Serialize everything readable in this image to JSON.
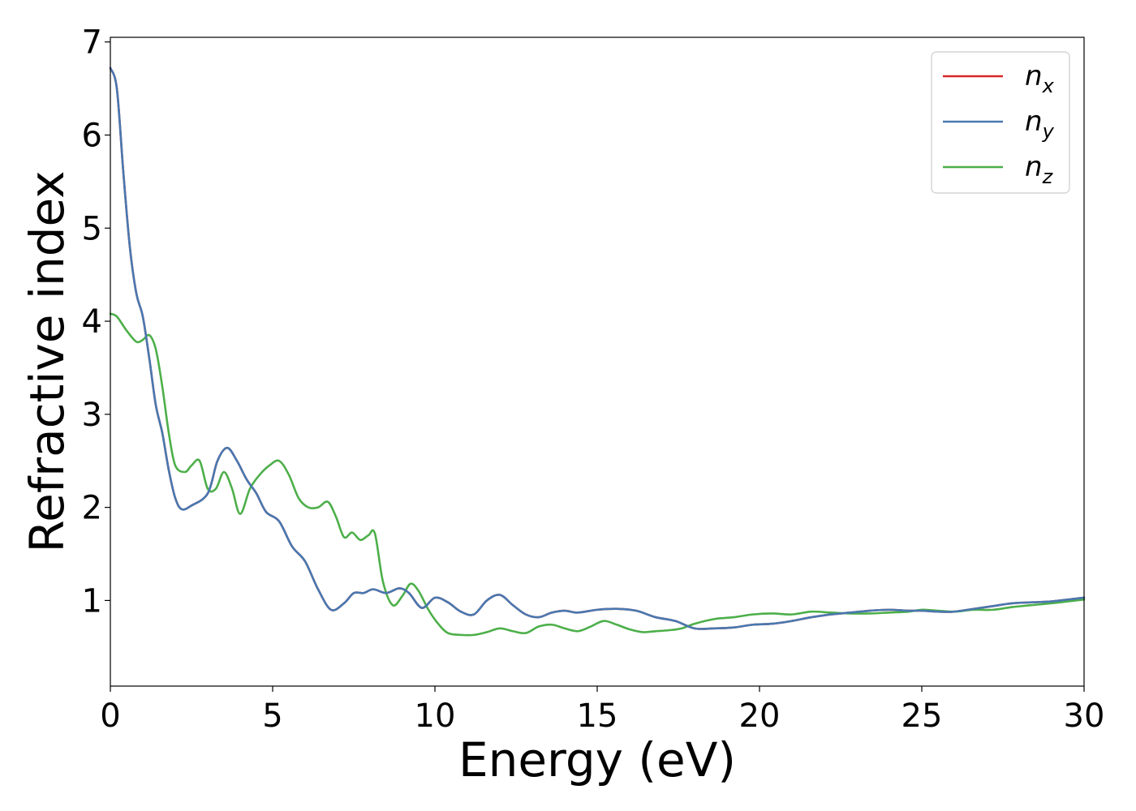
{
  "chart_data": {
    "type": "line",
    "xlabel": "Energy (eV)",
    "ylabel": "Refractive index",
    "xlim": [
      0,
      30
    ],
    "ylim": [
      0.08,
      7.05
    ],
    "xticks": [
      0,
      5,
      10,
      15,
      20,
      25,
      30
    ],
    "yticks": [
      1,
      2,
      3,
      4,
      5,
      6,
      7
    ],
    "grid": false,
    "legend_position": "top-right",
    "series": [
      {
        "name": "n",
        "subscript": "x",
        "color": "#d62728",
        "x": [
          0,
          0.2,
          0.4,
          0.6,
          0.8,
          1.0,
          1.2,
          1.4,
          1.6,
          1.8,
          2.0,
          2.2,
          2.5,
          3.0,
          3.3,
          3.6,
          3.9,
          4.2,
          4.5,
          4.8,
          5.2,
          5.6,
          6.0,
          6.4,
          6.8,
          7.2,
          7.5,
          7.8,
          8.1,
          8.5,
          8.9,
          9.2,
          9.6,
          10.0,
          10.4,
          10.8,
          11.2,
          11.6,
          12.0,
          12.4,
          12.8,
          13.2,
          13.6,
          14.0,
          14.4,
          15.0,
          15.6,
          16.2,
          16.8,
          17.4,
          18.0,
          18.6,
          19.2,
          19.8,
          20.4,
          21.0,
          21.6,
          22.2,
          22.8,
          23.4,
          24.0,
          24.6,
          25.0,
          25.5,
          26.0,
          26.6,
          27.2,
          27.8,
          28.4,
          29.0,
          29.5,
          30.0
        ],
        "y": [
          6.72,
          6.5,
          5.6,
          4.8,
          4.3,
          4.05,
          3.6,
          3.1,
          2.8,
          2.4,
          2.1,
          1.98,
          2.02,
          2.15,
          2.5,
          2.64,
          2.5,
          2.3,
          2.15,
          1.95,
          1.85,
          1.58,
          1.42,
          1.12,
          0.9,
          0.97,
          1.08,
          1.08,
          1.12,
          1.08,
          1.13,
          1.08,
          0.92,
          1.03,
          0.98,
          0.88,
          0.85,
          1.0,
          1.06,
          0.95,
          0.85,
          0.82,
          0.87,
          0.89,
          0.87,
          0.9,
          0.91,
          0.89,
          0.82,
          0.78,
          0.7,
          0.7,
          0.71,
          0.74,
          0.75,
          0.78,
          0.82,
          0.85,
          0.87,
          0.89,
          0.9,
          0.89,
          0.89,
          0.88,
          0.88,
          0.91,
          0.94,
          0.97,
          0.98,
          0.99,
          1.01,
          1.03
        ]
      },
      {
        "name": "n",
        "subscript": "y",
        "color": "#4878b0",
        "x": [
          0,
          0.2,
          0.4,
          0.6,
          0.8,
          1.0,
          1.2,
          1.4,
          1.6,
          1.8,
          2.0,
          2.2,
          2.5,
          3.0,
          3.3,
          3.6,
          3.9,
          4.2,
          4.5,
          4.8,
          5.2,
          5.6,
          6.0,
          6.4,
          6.8,
          7.2,
          7.5,
          7.8,
          8.1,
          8.5,
          8.9,
          9.2,
          9.6,
          10.0,
          10.4,
          10.8,
          11.2,
          11.6,
          12.0,
          12.4,
          12.8,
          13.2,
          13.6,
          14.0,
          14.4,
          15.0,
          15.6,
          16.2,
          16.8,
          17.4,
          18.0,
          18.6,
          19.2,
          19.8,
          20.4,
          21.0,
          21.6,
          22.2,
          22.8,
          23.4,
          24.0,
          24.6,
          25.0,
          25.5,
          26.0,
          26.6,
          27.2,
          27.8,
          28.4,
          29.0,
          29.5,
          30.0
        ],
        "y": [
          6.72,
          6.5,
          5.6,
          4.8,
          4.3,
          4.05,
          3.6,
          3.1,
          2.8,
          2.4,
          2.1,
          1.98,
          2.02,
          2.15,
          2.5,
          2.64,
          2.5,
          2.3,
          2.15,
          1.95,
          1.85,
          1.58,
          1.42,
          1.12,
          0.9,
          0.97,
          1.08,
          1.08,
          1.12,
          1.08,
          1.13,
          1.08,
          0.92,
          1.03,
          0.98,
          0.88,
          0.85,
          1.0,
          1.06,
          0.95,
          0.85,
          0.82,
          0.87,
          0.89,
          0.87,
          0.9,
          0.91,
          0.89,
          0.82,
          0.78,
          0.7,
          0.7,
          0.71,
          0.74,
          0.75,
          0.78,
          0.82,
          0.85,
          0.87,
          0.89,
          0.9,
          0.89,
          0.89,
          0.88,
          0.88,
          0.91,
          0.94,
          0.97,
          0.98,
          0.99,
          1.01,
          1.03
        ]
      },
      {
        "name": "n",
        "subscript": "z",
        "color": "#4daf4a",
        "x": [
          0,
          0.2,
          0.5,
          0.8,
          1.0,
          1.2,
          1.4,
          1.6,
          1.8,
          2.0,
          2.3,
          2.5,
          2.75,
          3.0,
          3.25,
          3.5,
          3.75,
          4.0,
          4.3,
          4.6,
          4.9,
          5.2,
          5.5,
          5.8,
          6.1,
          6.4,
          6.7,
          6.95,
          7.2,
          7.45,
          7.7,
          7.95,
          8.15,
          8.4,
          8.7,
          9.0,
          9.25,
          9.5,
          9.8,
          10.1,
          10.4,
          10.8,
          11.2,
          11.6,
          12.0,
          12.4,
          12.8,
          13.2,
          13.6,
          14.0,
          14.4,
          14.8,
          15.2,
          15.6,
          16.0,
          16.4,
          16.8,
          17.2,
          17.6,
          18.0,
          18.6,
          19.2,
          19.8,
          20.4,
          21.0,
          21.6,
          22.2,
          22.8,
          23.4,
          24.0,
          24.6,
          25.0,
          25.5,
          26.0,
          26.6,
          27.2,
          27.8,
          28.4,
          29.0,
          29.5,
          30.0
        ],
        "y": [
          4.08,
          4.05,
          3.9,
          3.78,
          3.8,
          3.85,
          3.7,
          3.3,
          2.8,
          2.45,
          2.38,
          2.45,
          2.5,
          2.2,
          2.2,
          2.38,
          2.2,
          1.93,
          2.2,
          2.35,
          2.45,
          2.5,
          2.35,
          2.1,
          2.0,
          2.0,
          2.06,
          1.9,
          1.68,
          1.73,
          1.65,
          1.7,
          1.72,
          1.2,
          0.95,
          1.05,
          1.18,
          1.1,
          0.9,
          0.75,
          0.65,
          0.63,
          0.63,
          0.66,
          0.7,
          0.67,
          0.65,
          0.72,
          0.74,
          0.7,
          0.67,
          0.72,
          0.78,
          0.74,
          0.69,
          0.66,
          0.67,
          0.68,
          0.7,
          0.75,
          0.8,
          0.82,
          0.85,
          0.86,
          0.85,
          0.88,
          0.87,
          0.86,
          0.86,
          0.87,
          0.88,
          0.9,
          0.89,
          0.88,
          0.9,
          0.9,
          0.93,
          0.95,
          0.97,
          0.99,
          1.01
        ]
      }
    ]
  }
}
